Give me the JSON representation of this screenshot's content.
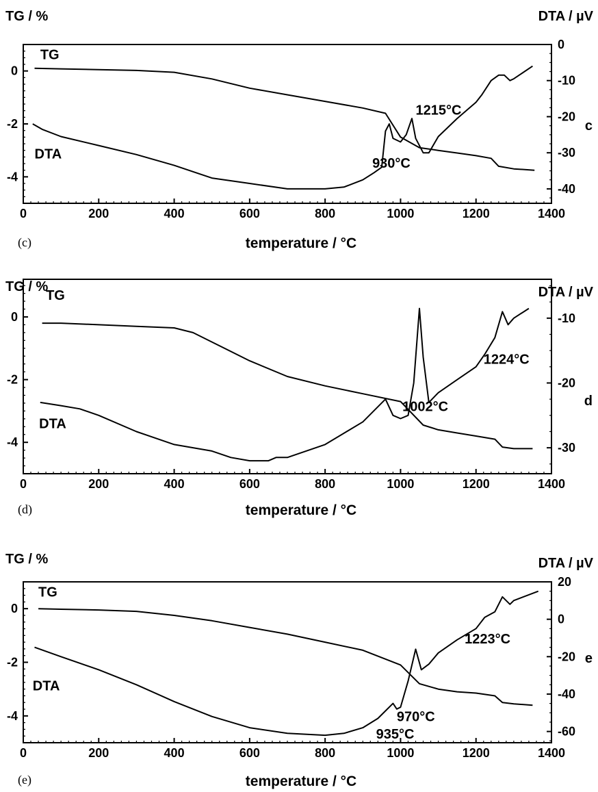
{
  "chart_data": [
    {
      "type": "line",
      "panel": "(c)",
      "side_letter": "c",
      "y_left_title": "TG / %",
      "y_right_title": "DTA / µV",
      "xlabel": "temperature / °C",
      "xlim": [
        0,
        1400
      ],
      "x_ticks": [
        0,
        200,
        400,
        600,
        800,
        1000,
        1200,
        1400
      ],
      "y_left_lim": [
        -5,
        1
      ],
      "y_left_ticks": [
        0,
        -2,
        -4
      ],
      "y_right_lim": [
        -44,
        0
      ],
      "y_right_ticks": [
        0,
        -10,
        -20,
        -30,
        -40
      ],
      "series": [
        {
          "name": "TG",
          "axis": "left",
          "x": [
            30,
            100,
            200,
            300,
            400,
            500,
            600,
            700,
            800,
            900,
            960,
            1000,
            1050,
            1100,
            1150,
            1200,
            1240,
            1260,
            1300,
            1355
          ],
          "y": [
            0.1,
            0.08,
            0.05,
            0.02,
            -0.05,
            -0.3,
            -0.65,
            -0.9,
            -1.15,
            -1.4,
            -1.6,
            -2.5,
            -2.9,
            -3.0,
            -3.1,
            -3.2,
            -3.3,
            -3.6,
            -3.7,
            -3.75
          ]
        },
        {
          "name": "DTA",
          "axis": "right",
          "x": [
            25,
            50,
            100,
            200,
            300,
            400,
            500,
            600,
            700,
            800,
            850,
            900,
            930,
            950,
            960,
            970,
            980,
            1000,
            1015,
            1030,
            1040,
            1060,
            1075,
            1100,
            1150,
            1200,
            1215,
            1240,
            1260,
            1275,
            1290,
            1300,
            1350
          ],
          "y": [
            -22,
            -23.5,
            -25.5,
            -28,
            -30.5,
            -33.5,
            -37,
            -38.5,
            -40,
            -40,
            -39.5,
            -37.5,
            -35.5,
            -34,
            -24,
            -22,
            -26,
            -27,
            -25,
            -20.5,
            -26,
            -30,
            -30,
            -25.5,
            -20.5,
            -16,
            -14,
            -10,
            -8.5,
            -8.5,
            -10,
            -9.5,
            -6
          ]
        }
      ],
      "annotations": [
        {
          "text": "TG",
          "x": 45,
          "y": 0.45,
          "axis": "left"
        },
        {
          "text": "DTA",
          "x": 30,
          "y": -3.3,
          "axis": "left"
        },
        {
          "text": "930°C",
          "x": 925,
          "y": -3.65,
          "axis": "left"
        },
        {
          "text": "1215°C",
          "x": 1040,
          "y": -1.65,
          "axis": "left"
        }
      ]
    },
    {
      "type": "line",
      "panel": "(d)",
      "side_letter": "d",
      "y_left_title": "TG / %",
      "y_right_title": "DTA / µV",
      "xlabel": "temperature / °C",
      "xlim": [
        0,
        1400
      ],
      "x_ticks": [
        0,
        200,
        400,
        600,
        800,
        1000,
        1200,
        1400
      ],
      "y_left_lim": [
        -5,
        1.2
      ],
      "y_left_ticks": [
        0,
        -2,
        -4
      ],
      "y_right_lim": [
        -34,
        -4
      ],
      "y_right_ticks": [
        -10,
        -20,
        -30
      ],
      "series": [
        {
          "name": "TG",
          "axis": "left",
          "x": [
            50,
            100,
            200,
            300,
            400,
            450,
            500,
            600,
            700,
            800,
            900,
            1000,
            1060,
            1100,
            1150,
            1200,
            1250,
            1270,
            1300,
            1350
          ],
          "y": [
            -0.2,
            -0.2,
            -0.25,
            -0.3,
            -0.35,
            -0.5,
            -0.8,
            -1.4,
            -1.9,
            -2.2,
            -2.45,
            -2.7,
            -3.45,
            -3.6,
            -3.7,
            -3.8,
            -3.9,
            -4.15,
            -4.2,
            -4.2
          ]
        },
        {
          "name": "DTA",
          "axis": "right",
          "x": [
            45,
            100,
            150,
            200,
            300,
            400,
            500,
            550,
            600,
            650,
            670,
            700,
            800,
            900,
            960,
            980,
            1000,
            1020,
            1035,
            1050,
            1060,
            1075,
            1100,
            1150,
            1200,
            1224,
            1250,
            1270,
            1285,
            1300,
            1340
          ],
          "y": [
            -23,
            -23.5,
            -24,
            -25,
            -27.5,
            -29.5,
            -30.5,
            -31.5,
            -32,
            -32,
            -31.5,
            -31.5,
            -29.5,
            -26,
            -22.5,
            -25,
            -25.5,
            -25,
            -20,
            -8.5,
            -16,
            -23,
            -21.5,
            -19.5,
            -17.5,
            -15.5,
            -13,
            -9,
            -11,
            -10,
            -8.5
          ]
        }
      ],
      "annotations": [
        {
          "text": "TG",
          "x": 60,
          "y": 0.55,
          "axis": "left"
        },
        {
          "text": "DTA",
          "x": 42,
          "y": -3.55,
          "axis": "left"
        },
        {
          "text": "1002°C",
          "x": 1005,
          "y": -3.0,
          "axis": "left"
        },
        {
          "text": "1224°C",
          "x": 1220,
          "y": -1.5,
          "axis": "left"
        }
      ]
    },
    {
      "type": "line",
      "panel": "(e)",
      "side_letter": "e",
      "y_left_title": "TG / %",
      "y_right_title": "DTA / µV",
      "xlabel": "temperature / °C",
      "xlim": [
        0,
        1400
      ],
      "x_ticks": [
        0,
        200,
        400,
        600,
        800,
        1000,
        1200,
        1400
      ],
      "y_left_lim": [
        -5,
        1
      ],
      "y_left_ticks": [
        0,
        -2,
        -4
      ],
      "y_right_lim": [
        -66,
        20
      ],
      "y_right_ticks": [
        20,
        0,
        -20,
        -40,
        -60
      ],
      "series": [
        {
          "name": "TG",
          "axis": "left",
          "x": [
            40,
            100,
            200,
            300,
            400,
            500,
            600,
            700,
            800,
            900,
            1000,
            1050,
            1100,
            1150,
            1200,
            1250,
            1270,
            1300,
            1350
          ],
          "y": [
            0.0,
            -0.02,
            -0.05,
            -0.1,
            -0.25,
            -0.45,
            -0.7,
            -0.95,
            -1.25,
            -1.55,
            -2.1,
            -2.8,
            -3.0,
            -3.1,
            -3.15,
            -3.25,
            -3.5,
            -3.55,
            -3.6
          ]
        },
        {
          "name": "DTA",
          "axis": "right",
          "x": [
            30,
            100,
            200,
            300,
            400,
            500,
            600,
            700,
            800,
            850,
            900,
            940,
            960,
            980,
            990,
            1000,
            1020,
            1040,
            1055,
            1075,
            1100,
            1150,
            1200,
            1223,
            1250,
            1270,
            1290,
            1300,
            1365
          ],
          "y": [
            -15,
            -20,
            -27,
            -35,
            -44,
            -52,
            -58,
            -61,
            -62,
            -61,
            -58,
            -53,
            -49,
            -45,
            -48,
            -47,
            -33,
            -16,
            -27,
            -24,
            -18,
            -11,
            -5,
            1,
            4,
            12,
            8,
            10,
            15
          ]
        }
      ],
      "annotations": [
        {
          "text": "TG",
          "x": 40,
          "y": 0.45,
          "axis": "left"
        },
        {
          "text": "DTA",
          "x": 25,
          "y": -3.05,
          "axis": "left"
        },
        {
          "text": "970°C",
          "x": 990,
          "y": -4.2,
          "axis": "left"
        },
        {
          "text": "935°C",
          "x": 935,
          "y": -4.85,
          "axis": "left"
        },
        {
          "text": "1223°C",
          "x": 1170,
          "y": -1.3,
          "axis": "left"
        }
      ]
    }
  ]
}
